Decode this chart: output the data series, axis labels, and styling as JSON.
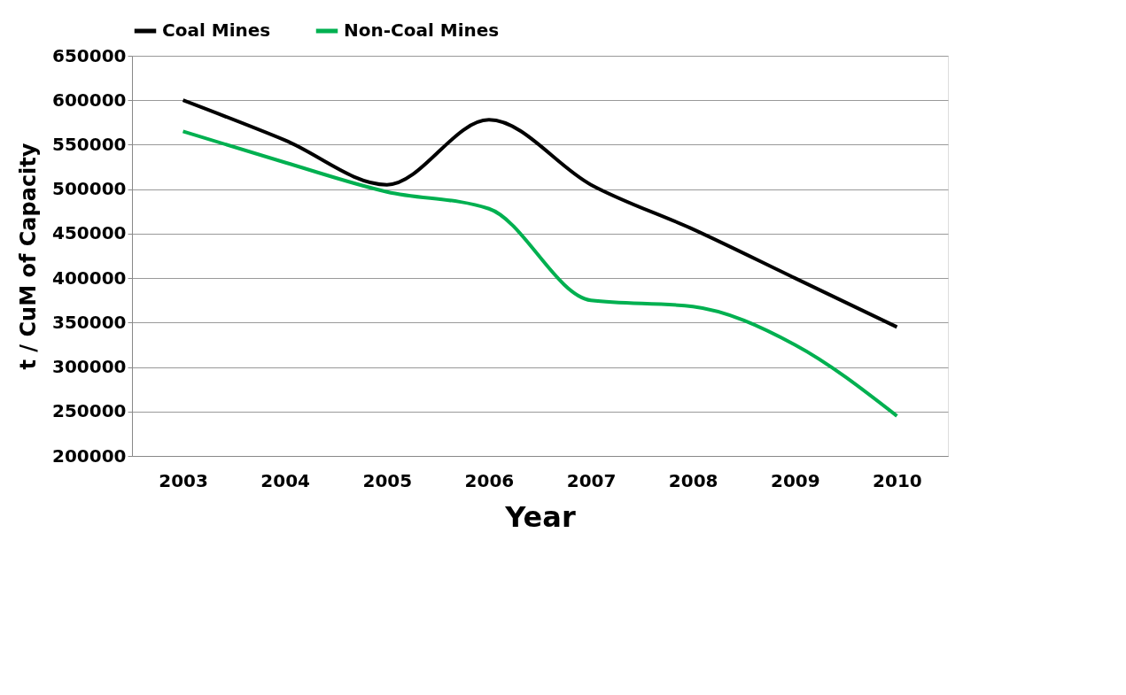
{
  "chart_data": {
    "type": "line",
    "xlabel": "Year",
    "ylabel": "t / CuM of Capacity",
    "categories": [
      "2003",
      "2004",
      "2005",
      "2006",
      "2007",
      "2008",
      "2009",
      "2010"
    ],
    "series": [
      {
        "name": "Coal Mines",
        "color": "#000000",
        "values": [
          600000,
          555000,
          505000,
          578000,
          505000,
          455000,
          400000,
          345000
        ]
      },
      {
        "name": "Non-Coal Mines",
        "color": "#00b050",
        "values": [
          565000,
          530000,
          497000,
          478000,
          375000,
          368000,
          325000,
          245000
        ]
      }
    ],
    "ylim": [
      200000,
      650000
    ],
    "yticks": [
      200000,
      250000,
      300000,
      350000,
      400000,
      450000,
      500000,
      550000,
      600000,
      650000
    ],
    "grid": "y",
    "legend": "top",
    "marker": "none",
    "line_style": "solid"
  }
}
